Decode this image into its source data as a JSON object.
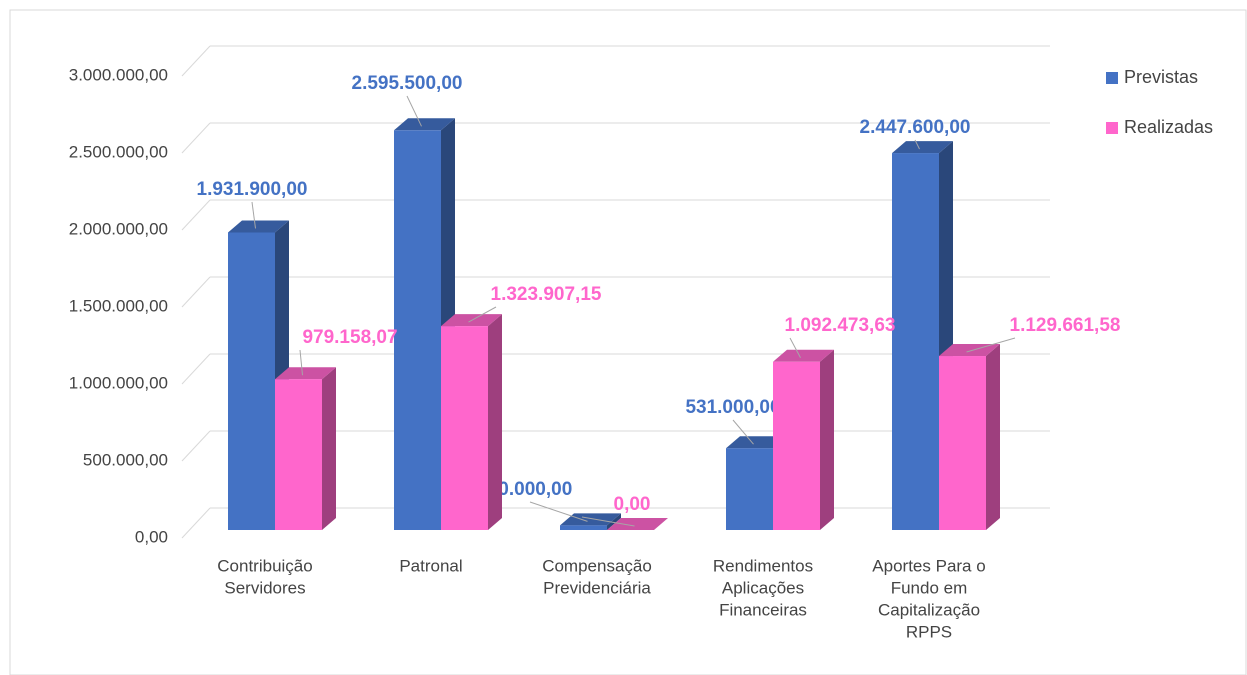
{
  "chart_data": {
    "type": "bar3d",
    "categories": [
      [
        "Contribuição",
        "Servidores"
      ],
      [
        "Patronal"
      ],
      [
        "Compensação",
        "Previdenciária"
      ],
      [
        "Rendimentos",
        "Aplicações",
        "Financeiras"
      ],
      [
        "Aportes  Para o",
        "Fundo em",
        "Capitalização",
        "RPPS"
      ]
    ],
    "series": [
      {
        "name": "Previstas",
        "color": "#4472c4",
        "values": [
          1931900,
          2595500,
          30000,
          531000,
          2447600
        ],
        "value_labels": [
          "1.931.900,00",
          "2.595.500,00",
          "30.000,00",
          "531.000,00",
          "2.447.600,00"
        ]
      },
      {
        "name": "Realizadas",
        "color": "#ff66cc",
        "values": [
          979158.07,
          1323907.15,
          0,
          1092473.63,
          1129661.58
        ],
        "value_labels": [
          "979.158,07",
          "1.323.907,15",
          "0,00",
          "1.092.473,63",
          "1.129.661,58"
        ]
      }
    ],
    "ylim": [
      0,
      3000000
    ],
    "yticks": [
      {
        "value": 0,
        "label": "0,00"
      },
      {
        "value": 500000,
        "label": "500.000,00"
      },
      {
        "value": 1000000,
        "label": "1.000.000,00"
      },
      {
        "value": 1500000,
        "label": "1.500.000,00"
      },
      {
        "value": 2000000,
        "label": "2.000.000,00"
      },
      {
        "value": 2500000,
        "label": "2.500.000,00"
      },
      {
        "value": 3000000,
        "label": "3.000.000,00"
      }
    ],
    "grid": true,
    "legend": "right"
  }
}
